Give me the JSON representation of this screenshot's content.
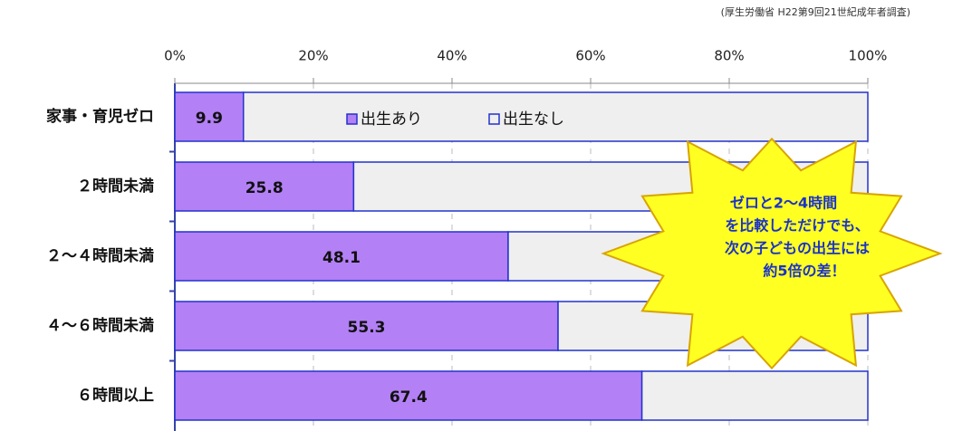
{
  "chart_data": {
    "type": "bar",
    "orientation": "horizontal",
    "stacked": true,
    "source": "(厚生労働省 H22第9回21世紀成年者調査)",
    "categories": [
      "家事・育児ゼロ",
      "２時間未満",
      "２～４時間未満",
      "４～６時間未満",
      "６時間以上"
    ],
    "series": [
      {
        "name": "出生あり",
        "color": "#b380f5",
        "values": [
          9.9,
          25.8,
          48.1,
          55.3,
          67.4
        ]
      },
      {
        "name": "出生なし",
        "color": "#efefef",
        "values": [
          90.1,
          74.2,
          51.9,
          44.7,
          32.6
        ]
      }
    ],
    "xlim": [
      0,
      100
    ],
    "xticks": [
      {
        "value": 0,
        "label": "0%"
      },
      {
        "value": 20,
        "label": "20%"
      },
      {
        "value": 40,
        "label": "40%"
      },
      {
        "value": 60,
        "label": "60%"
      },
      {
        "value": 80,
        "label": "80%"
      },
      {
        "value": 100,
        "label": "100%"
      }
    ],
    "grid": true,
    "annotations": [
      "ゼロと2～4時間",
      "を比較しただけでも、",
      "次の子どもの出生には",
      "約5倍の差！"
    ]
  }
}
